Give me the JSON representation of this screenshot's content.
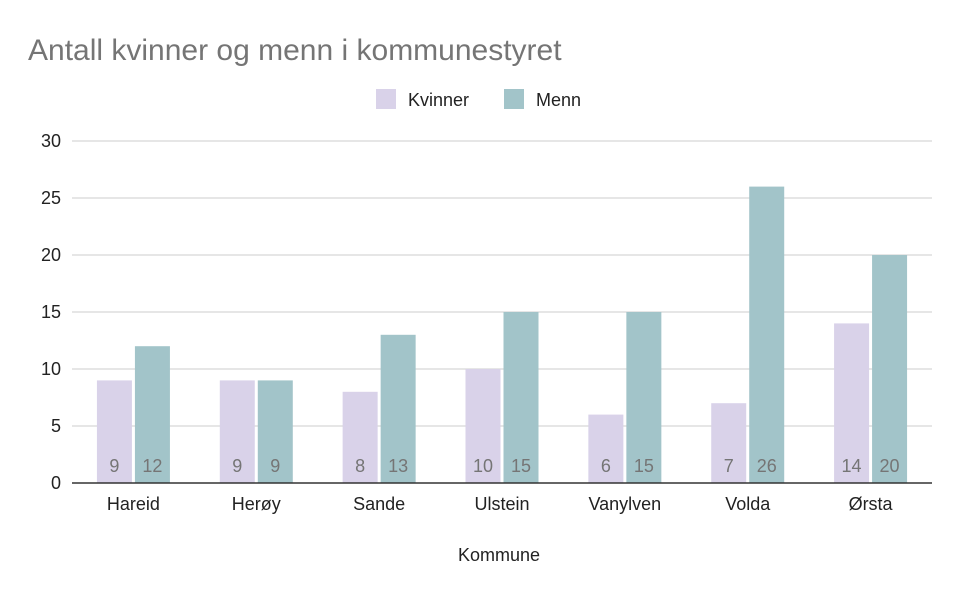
{
  "chart_data": {
    "type": "bar",
    "title": "Antall kvinner og menn i kommunestyret",
    "xlabel": "Kommune",
    "ylabel": "",
    "categories": [
      "Hareid",
      "Herøy",
      "Sande",
      "Ulstein",
      "Vanylven",
      "Volda",
      "Ørsta"
    ],
    "series": [
      {
        "name": "Kvinner",
        "color": "#d9d2e9",
        "values": [
          9,
          9,
          8,
          10,
          6,
          7,
          14
        ]
      },
      {
        "name": "Menn",
        "color": "#a2c4c9",
        "values": [
          12,
          9,
          13,
          15,
          15,
          26,
          20
        ]
      }
    ],
    "ylim": [
      0,
      30
    ],
    "yticks": [
      0,
      5,
      10,
      15,
      20,
      25,
      30
    ],
    "grid": true,
    "legend_position": "top-center",
    "data_labels": true
  }
}
